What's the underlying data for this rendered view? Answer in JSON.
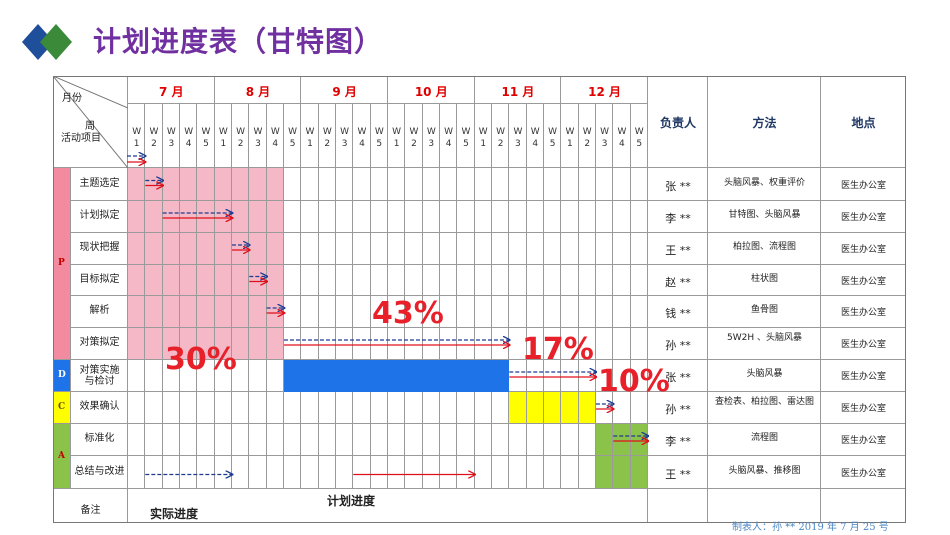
{
  "title": "计划进度表（甘特图）",
  "header": {
    "month_label": "月份",
    "week_label_line1": "周",
    "week_label_line2": "活动项目",
    "months": [
      "7 月",
      "8 月",
      "9 月",
      "10 月",
      "11 月",
      "12 月"
    ],
    "week_prefix": "W",
    "week_numbers": [
      "1",
      "2",
      "3",
      "4",
      "5"
    ],
    "owner_header": "负责人",
    "method_header": "方法",
    "place_header": "地点"
  },
  "phases": [
    {
      "letter": "P",
      "color": "#F28BA0"
    },
    {
      "letter": "D",
      "color": "#1E73E8"
    },
    {
      "letter": "C",
      "color": "#FFFF00"
    },
    {
      "letter": "A",
      "color": "#8BC34A"
    }
  ],
  "rows": [
    {
      "activity": "主题选定",
      "owner": "张 **",
      "method": "头脑风暴、权重评价",
      "place": "医生办公室"
    },
    {
      "activity": "计划拟定",
      "owner": "李 **",
      "method": "甘特图、头脑风暴",
      "place": "医生办公室"
    },
    {
      "activity": "现状把握",
      "owner": "王 **",
      "method": "柏拉图、流程图",
      "place": "医生办公室"
    },
    {
      "activity": "目标拟定",
      "owner": "赵 **",
      "method": "柱状图",
      "place": "医生办公室"
    },
    {
      "activity": "解析",
      "owner": "钱 **",
      "method": "鱼骨图",
      "place": "医生办公室"
    },
    {
      "activity": "对策拟定",
      "owner": "孙 **",
      "method": "5W2H 、头脑风暴",
      "place": "医生办公室"
    },
    {
      "activity": "对策实施与检讨",
      "owner": "张 **",
      "method": "头脑风暴",
      "place": "医生办公室"
    },
    {
      "activity": "效果确认",
      "owner": "孙 **",
      "method": "查检表、柏拉图、雷达图",
      "place": "医生办公室"
    },
    {
      "activity": "标准化",
      "owner": "李 **",
      "method": "流程图",
      "place": "医生办公室"
    },
    {
      "activity": "总结与改进",
      "owner": "王 **",
      "method": "头脑风暴、推移图",
      "place": "医生办公室"
    }
  ],
  "remark_label": "备注",
  "legend_actual": "实际进度",
  "legend_planned": "计划进度",
  "percentages": {
    "p1": "30%",
    "p2": "43%",
    "p3": "17%",
    "p4": "10%"
  },
  "footer": "制表人：孙 **    2019 年 7 月 25 号",
  "colors": {
    "pink": "#F4B8C6",
    "blue": "#1E73E8",
    "yellow": "#FFFF00",
    "green": "#8BC34A",
    "arrow_red": "#e0101a",
    "arrow_blue": "#1f3b8f"
  }
}
